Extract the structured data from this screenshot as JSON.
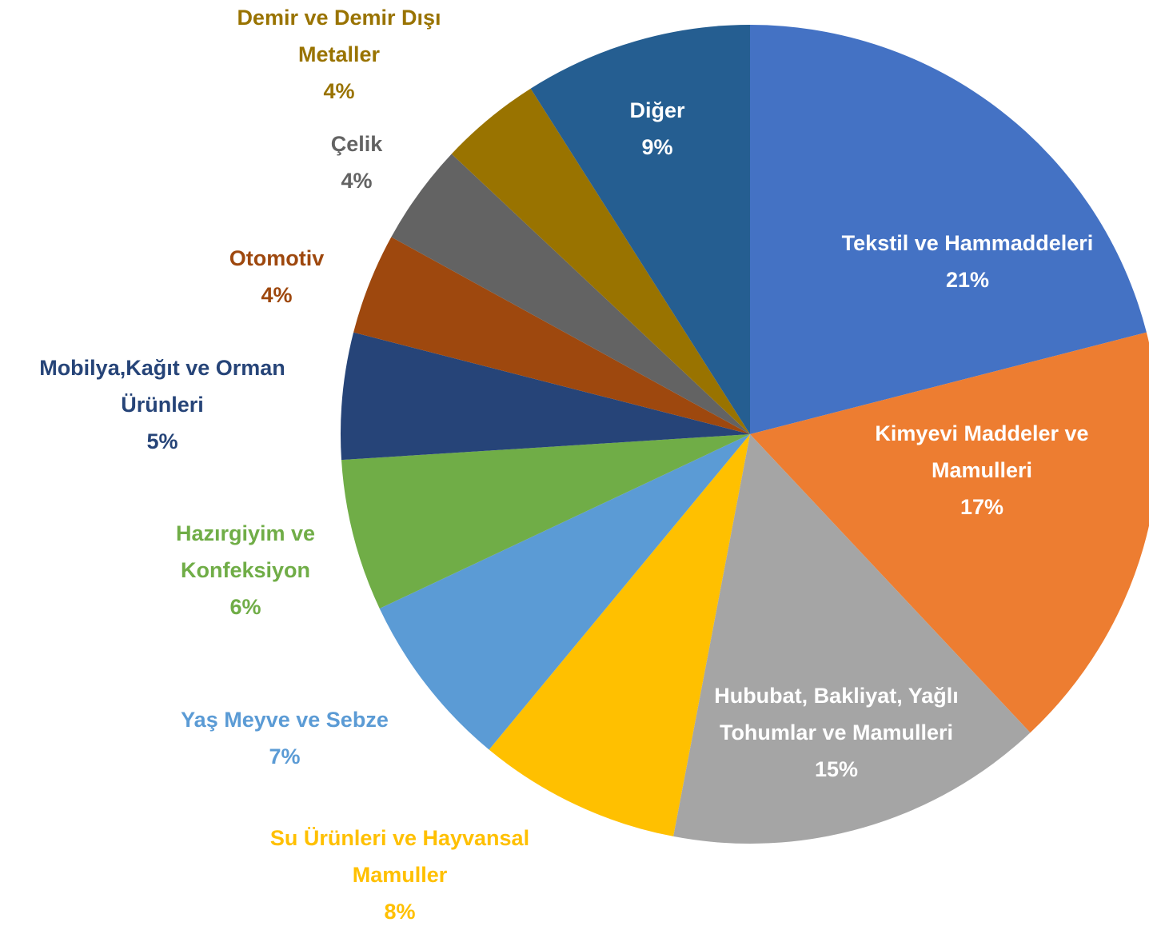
{
  "chart_data": {
    "type": "pie",
    "categories": [
      "Tekstil ve Hammaddeleri",
      "Kimyevi Maddeler ve Mamulleri",
      "Hububat, Bakliyat, Yağlı Tohumlar ve Mamulleri",
      "Su Ürünleri ve Hayvansal Mamuller",
      "Yaş Meyve ve Sebze",
      "Hazırgiyim ve Konfeksiyon",
      "Mobilya,Kağıt ve Orman Ürünleri",
      "Otomotiv",
      "Çelik",
      "Demir ve Demir Dışı Metaller",
      "Diğer"
    ],
    "values": [
      21,
      17,
      15,
      8,
      7,
      6,
      5,
      4,
      4,
      4,
      9
    ],
    "value_labels": [
      "21%",
      "17%",
      "15%",
      "8%",
      "7%",
      "6%",
      "5%",
      "4%",
      "4%",
      "4%",
      "9%"
    ],
    "colors": [
      "#4472c4",
      "#ed7d31",
      "#a5a5a5",
      "#ffc000",
      "#5b9bd5",
      "#70ad47",
      "#264478",
      "#9e480e",
      "#636363",
      "#997300",
      "#255e91"
    ]
  }
}
